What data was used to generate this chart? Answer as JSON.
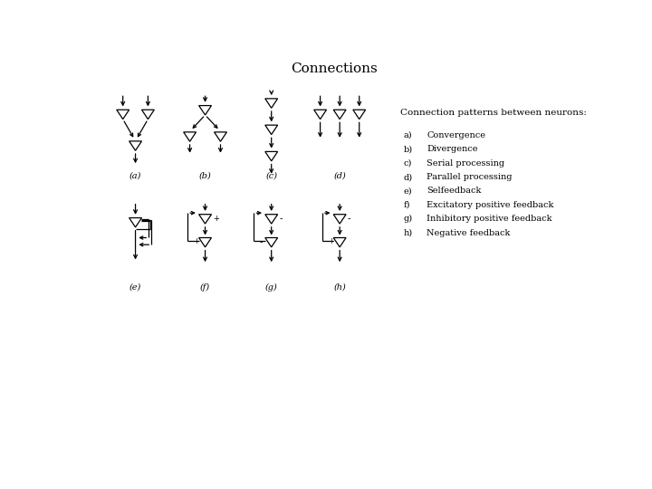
{
  "title": "Connections",
  "subtitle": "Connection patterns between neurons:",
  "legend_items": [
    [
      "a)",
      "Convergence"
    ],
    [
      "b)",
      "Divergence"
    ],
    [
      "c)",
      "Serial processing"
    ],
    [
      "d)",
      "Parallel processing"
    ],
    [
      "e)",
      "Selfeedback"
    ],
    [
      "f)",
      "Excitatory positive feedback"
    ],
    [
      "g)",
      "Inhibitory positive feedback"
    ],
    [
      "h)",
      "Negative feedback"
    ]
  ],
  "bg_color": "#ffffff",
  "line_color": "#000000",
  "title_fontsize": 11,
  "label_fontsize": 7,
  "legend_fontsize": 7.5
}
